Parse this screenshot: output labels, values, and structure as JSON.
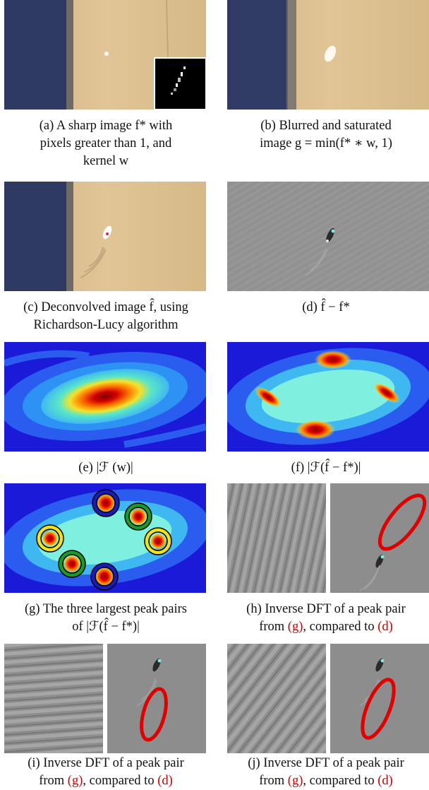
{
  "figure": {
    "panels": [
      {
        "id": "a",
        "caption": [
          "(a) A sharp image f* with",
          "pixels greater than 1, and",
          "kernel w"
        ]
      },
      {
        "id": "b",
        "caption": [
          "(b) Blurred and saturated",
          "image g = min(f* ∗ w, 1)"
        ]
      },
      {
        "id": "c",
        "caption": [
          "(c) Deconvolved image f̂, using",
          "Richardson-Lucy algorithm"
        ]
      },
      {
        "id": "d",
        "caption": [
          "(d) f̂ − f*"
        ]
      },
      {
        "id": "e",
        "caption": [
          "(e) |ℱ (w)|"
        ]
      },
      {
        "id": "f",
        "caption": [
          "(f) |ℱ(f̂ − f*)|"
        ]
      },
      {
        "id": "g",
        "caption": [
          "(g) The three largest peak pairs",
          "of |ℱ(f̂ − f*)|"
        ]
      },
      {
        "id": "h",
        "caption": [
          "(h) Inverse DFT of a peak pair",
          "from ",
          "(g)",
          ", compared to ",
          "(d)"
        ]
      },
      {
        "id": "i",
        "caption": [
          "(i) Inverse DFT of a peak pair",
          "from ",
          "(g)",
          ", compared to ",
          "(d)"
        ]
      },
      {
        "id": "j",
        "caption": [
          "(j) Inverse DFT of a peak pair",
          "from ",
          "(g)",
          ", compared to ",
          "(d)"
        ]
      }
    ],
    "colors": {
      "photo_sky": "#2f3a63",
      "photo_wall": "#d9b98a",
      "residual_gray": "#8d8d8d",
      "jet_blue": "#1a1ad8",
      "jet_red": "#d40000",
      "circle_blue": "#1b1bbd",
      "circle_green": "#1a9a2a",
      "circle_yellow": "#f2e21a",
      "highlight_ellipse": "#e00000",
      "reference_link": "#d40000"
    }
  }
}
